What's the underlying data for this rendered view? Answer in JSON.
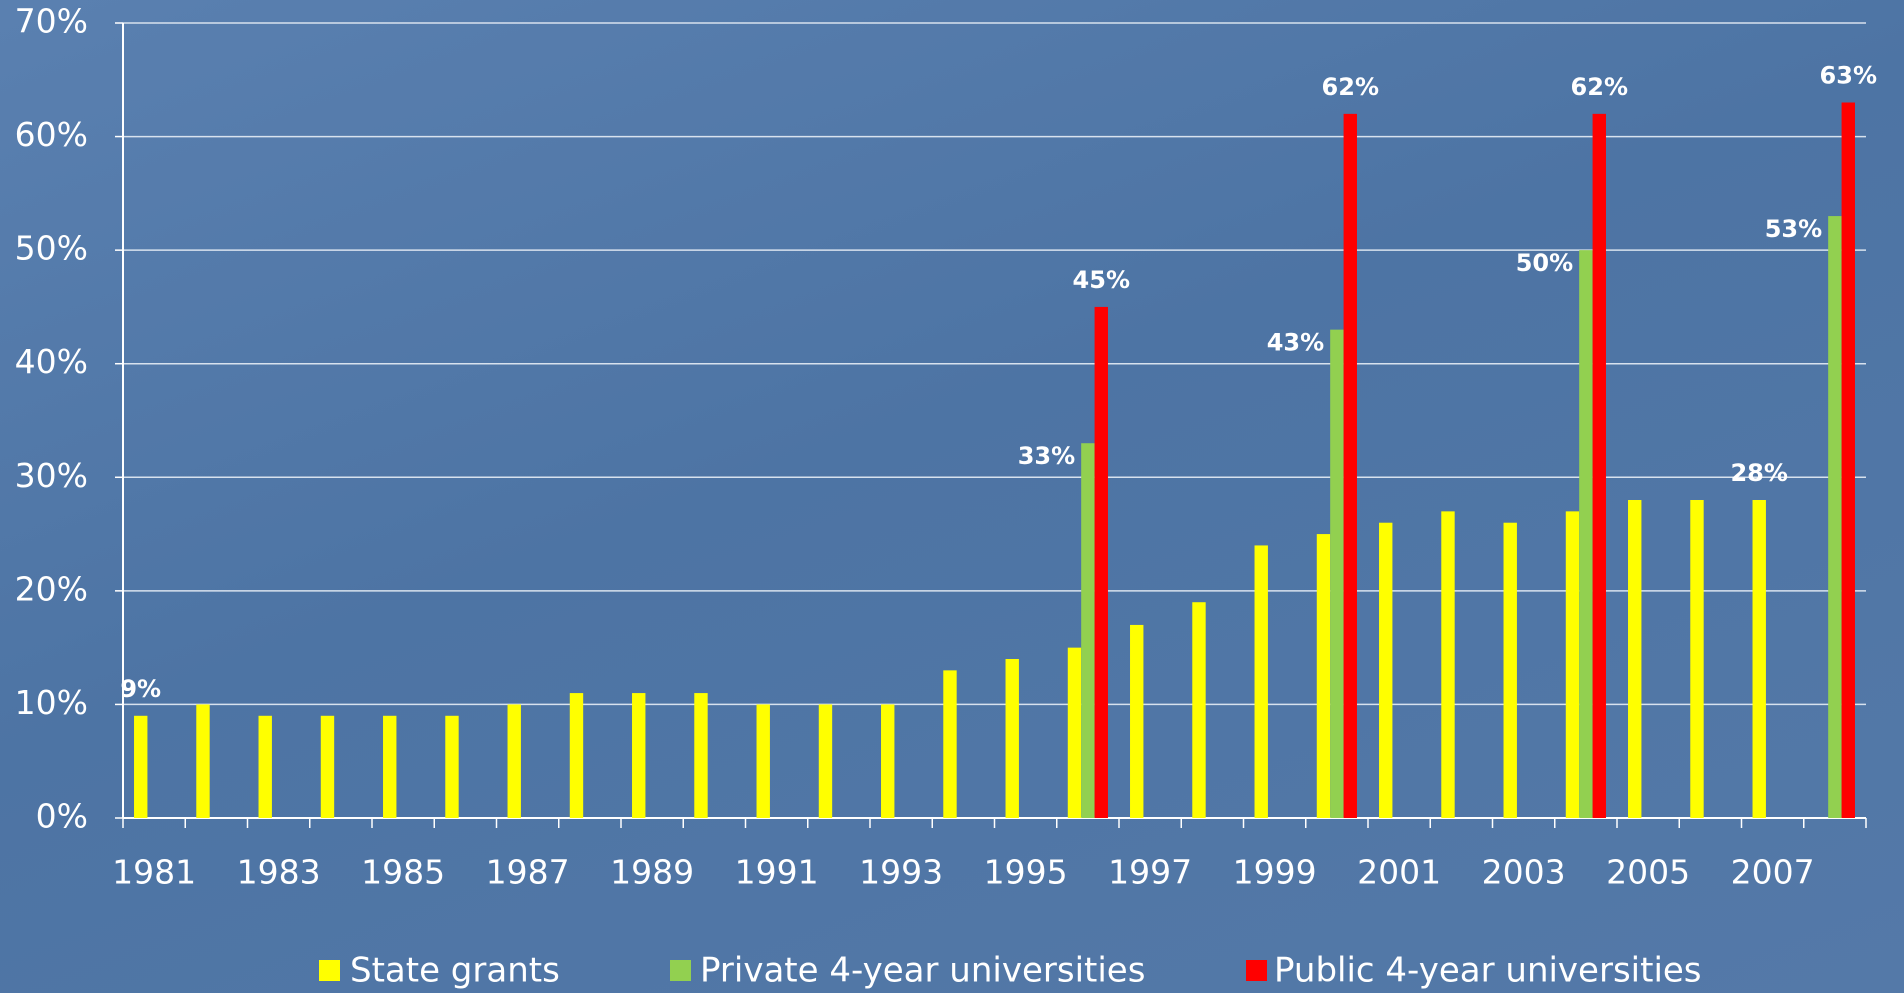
{
  "chart_data": {
    "type": "bar",
    "categories": [
      "1981",
      null,
      "1983",
      null,
      "1985",
      null,
      "1987",
      null,
      "1989",
      null,
      "1991",
      null,
      "1993",
      null,
      "1995",
      null,
      "1997",
      null,
      "1999",
      null,
      "2001",
      null,
      "2003",
      null,
      "2005",
      null,
      "2007",
      null
    ],
    "series": [
      {
        "name": "State grants",
        "color": "#ffff00",
        "values": [
          9,
          10,
          9,
          9,
          9,
          9,
          10,
          11,
          11,
          11,
          10,
          10,
          10,
          13,
          14,
          15,
          17,
          19,
          24,
          25,
          26,
          27,
          26,
          27,
          28,
          28,
          28,
          null
        ],
        "value_labels": [
          "9%",
          null,
          null,
          null,
          null,
          null,
          null,
          null,
          null,
          null,
          null,
          null,
          null,
          null,
          null,
          null,
          null,
          null,
          null,
          null,
          null,
          null,
          null,
          null,
          null,
          null,
          "28%",
          null
        ]
      },
      {
        "name": "Private 4-year universities",
        "color": "#92d050",
        "values": [
          null,
          null,
          null,
          null,
          null,
          null,
          null,
          null,
          null,
          null,
          null,
          null,
          null,
          null,
          null,
          33,
          null,
          null,
          null,
          43,
          null,
          null,
          null,
          50,
          null,
          null,
          null,
          53
        ],
        "value_labels": [
          null,
          null,
          null,
          null,
          null,
          null,
          null,
          null,
          null,
          null,
          null,
          null,
          null,
          null,
          null,
          "33%",
          null,
          null,
          null,
          "43%",
          null,
          null,
          null,
          "50%",
          null,
          null,
          null,
          "53%"
        ]
      },
      {
        "name": "Public 4-year universities",
        "color": "#ff0000",
        "values": [
          null,
          null,
          null,
          null,
          null,
          null,
          null,
          null,
          null,
          null,
          null,
          null,
          null,
          null,
          null,
          45,
          null,
          null,
          null,
          62,
          null,
          null,
          null,
          62,
          null,
          null,
          null,
          63
        ],
        "value_labels": [
          null,
          null,
          null,
          null,
          null,
          null,
          null,
          null,
          null,
          null,
          null,
          null,
          null,
          null,
          null,
          "45%",
          null,
          null,
          null,
          "62%",
          null,
          null,
          null,
          "62%",
          null,
          null,
          null,
          "63%"
        ]
      }
    ],
    "ylim": [
      0,
      70
    ],
    "yticks": [
      {
        "value": 0,
        "label": "0%"
      },
      {
        "value": 10,
        "label": "10%"
      },
      {
        "value": 20,
        "label": "20%"
      },
      {
        "value": 30,
        "label": "30%"
      },
      {
        "value": 40,
        "label": "40%"
      },
      {
        "value": 50,
        "label": "50%"
      },
      {
        "value": 60,
        "label": "60%"
      },
      {
        "value": 70,
        "label": "70%"
      }
    ],
    "grid": true,
    "legend": "bottom"
  }
}
